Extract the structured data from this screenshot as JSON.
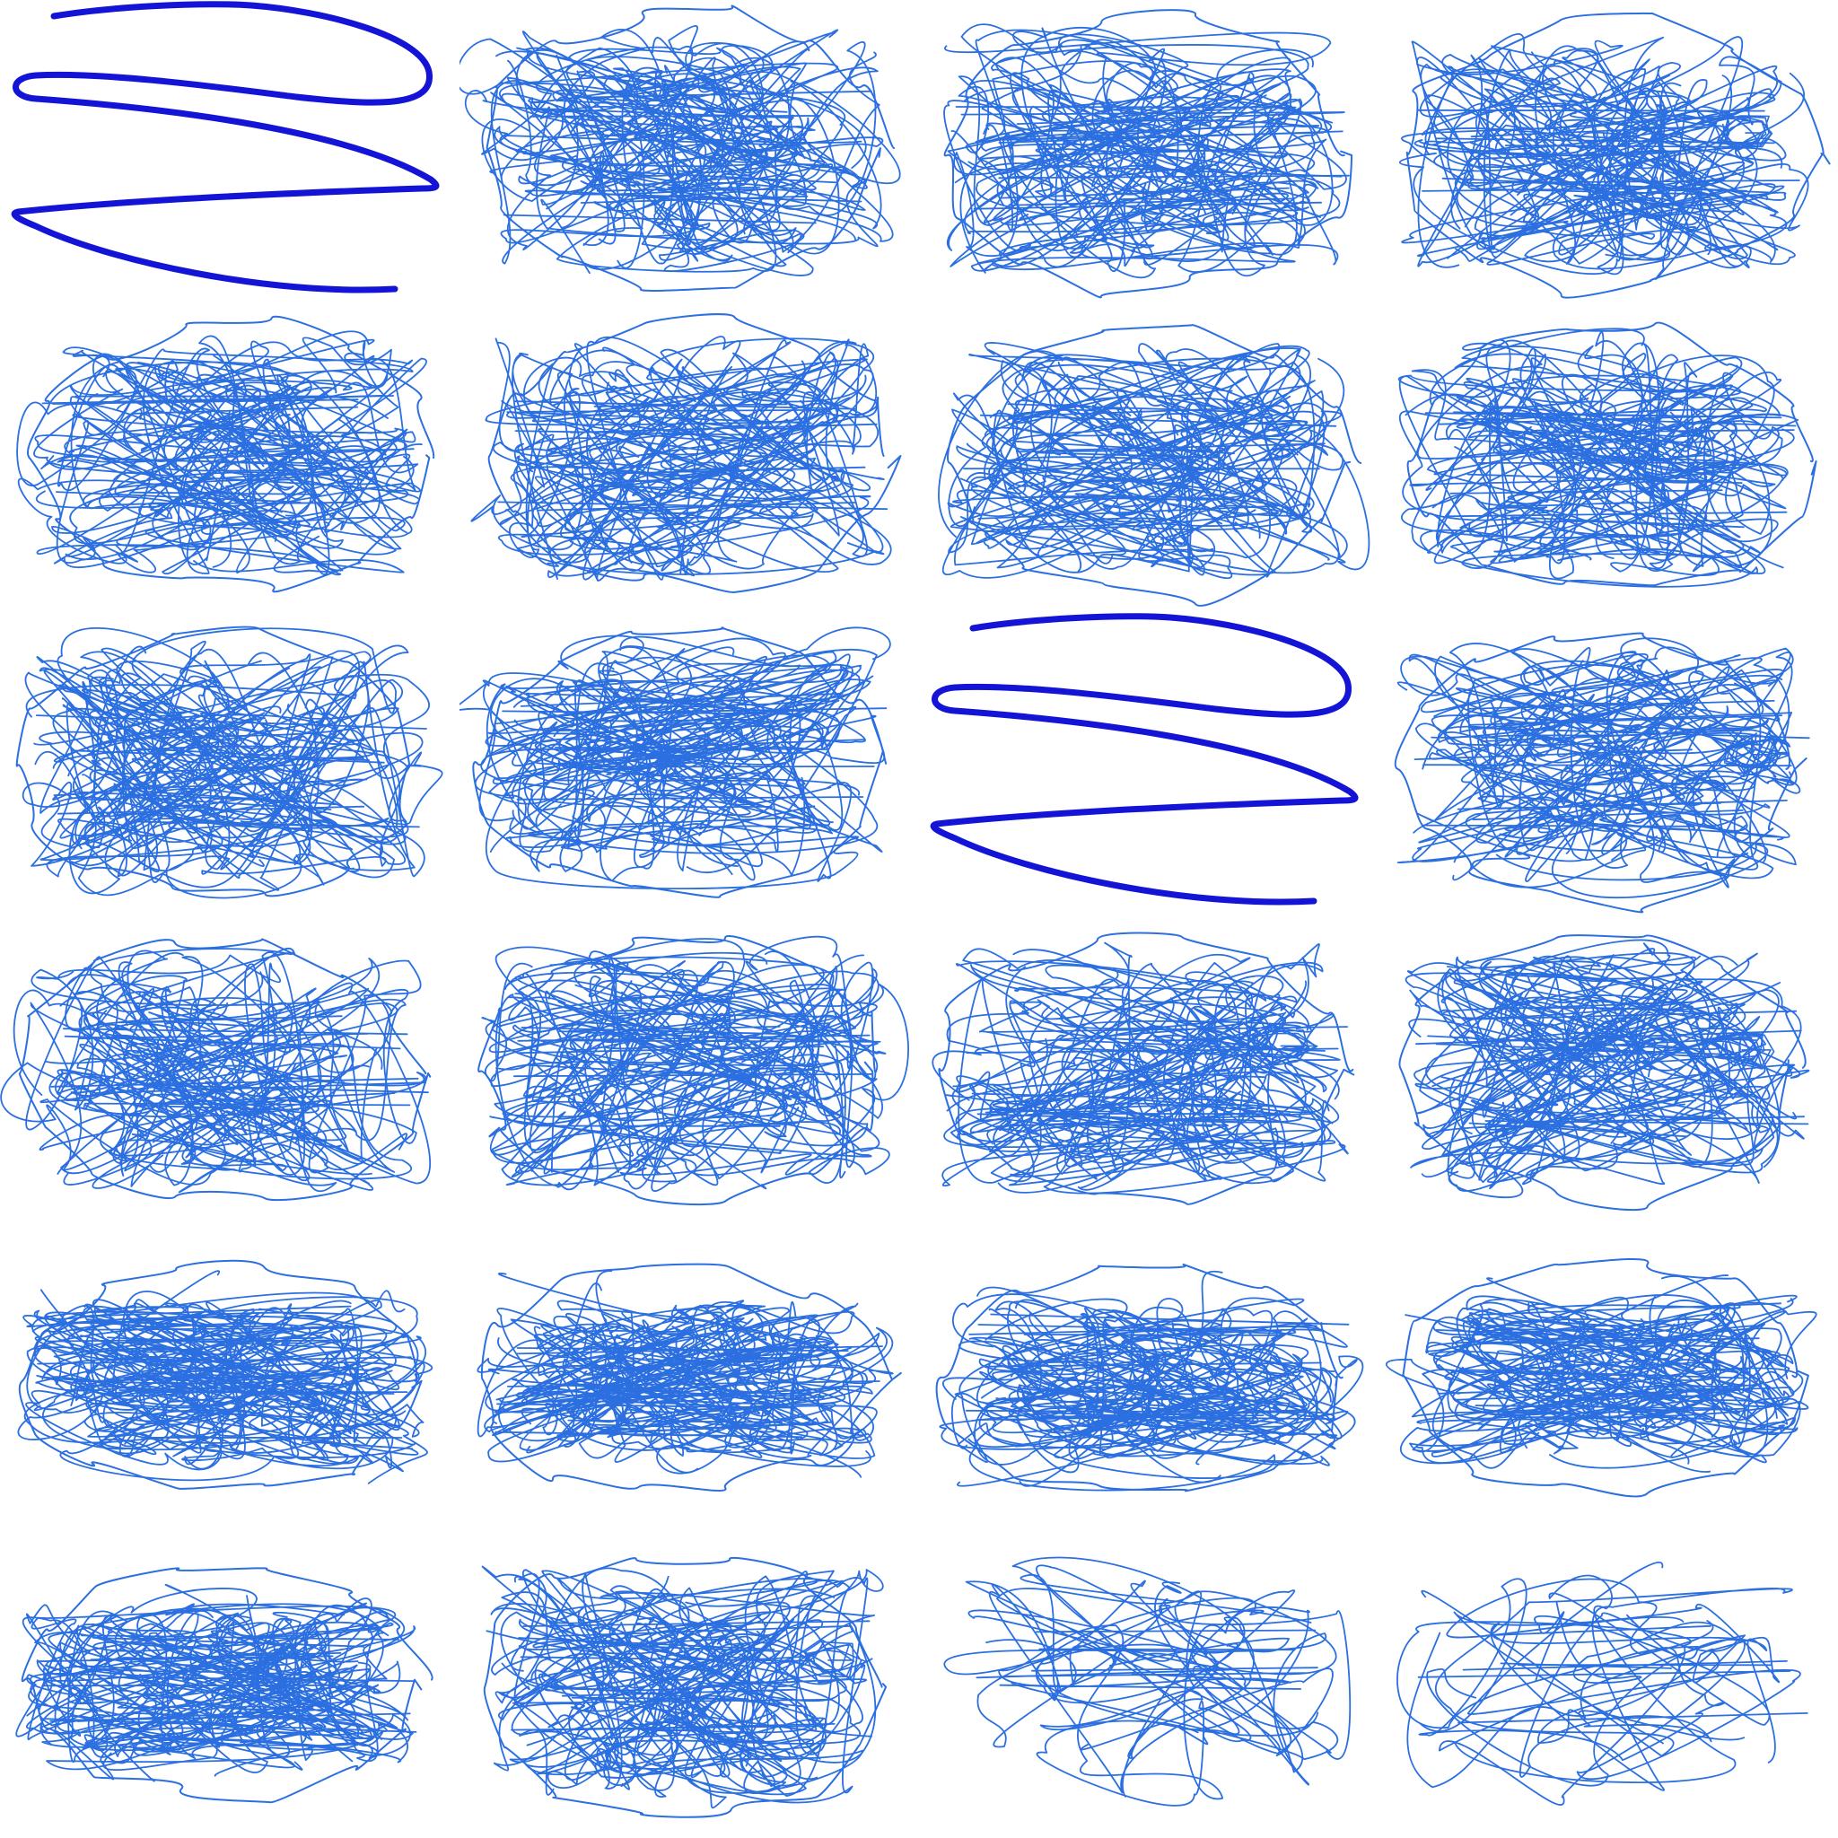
{
  "grid": {
    "rows": 6,
    "cols": 4
  },
  "colors": {
    "background": "#ffffff",
    "scribble_stroke": "#2b6fe0",
    "zigzag_stroke": "#1414d6"
  },
  "cells": [
    {
      "kind": "zigzag"
    },
    {
      "kind": "scribble",
      "variant": "dense"
    },
    {
      "kind": "scribble",
      "variant": "dense"
    },
    {
      "kind": "scribble",
      "variant": "knot"
    },
    {
      "kind": "scribble",
      "variant": "dense"
    },
    {
      "kind": "scribble",
      "variant": "dense"
    },
    {
      "kind": "scribble",
      "variant": "dense"
    },
    {
      "kind": "scribble",
      "variant": "dense"
    },
    {
      "kind": "scribble",
      "variant": "dense"
    },
    {
      "kind": "scribble",
      "variant": "dense"
    },
    {
      "kind": "zigzag"
    },
    {
      "kind": "scribble",
      "variant": "knot"
    },
    {
      "kind": "scribble",
      "variant": "dense"
    },
    {
      "kind": "scribble",
      "variant": "dense"
    },
    {
      "kind": "scribble",
      "variant": "knot"
    },
    {
      "kind": "scribble",
      "variant": "knot"
    },
    {
      "kind": "scribble",
      "variant": "flat"
    },
    {
      "kind": "scribble",
      "variant": "flat"
    },
    {
      "kind": "scribble",
      "variant": "flat"
    },
    {
      "kind": "scribble",
      "variant": "flat"
    },
    {
      "kind": "scribble",
      "variant": "flat"
    },
    {
      "kind": "scribble",
      "variant": "knot"
    },
    {
      "kind": "scribble",
      "variant": "sparse"
    },
    {
      "kind": "scribble",
      "variant": "sparse"
    }
  ]
}
